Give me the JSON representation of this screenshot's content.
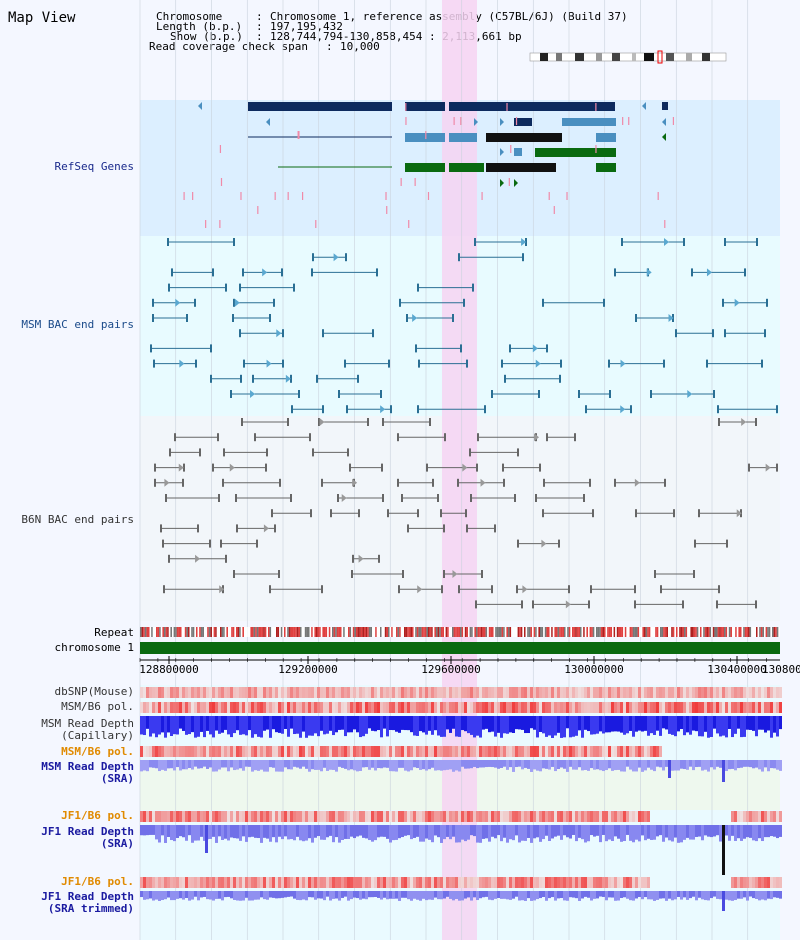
{
  "view_title": "Map View",
  "info": {
    "chromosome_label": "Chromosome",
    "chromosome_value": "Chromosome 1, reference assembly (C57BL/6J) (Build 37)",
    "length_label": "Length (b.p.)",
    "length_value": "197,195,432",
    "show_label": "Show (b.p.)",
    "show_value": "128,744,794-130,858,454 : 2,113,661 bp",
    "coverage_label": "Read coverage check span",
    "coverage_value": "10,000"
  },
  "tracks": {
    "refseq": "RefSeq Genes",
    "msm_bac": "MSM BAC end pairs",
    "b6n_bac": "B6N BAC end pairs",
    "repeat": "Repeat",
    "chromosome": "chromosome 1",
    "dbsnp": "dbSNP(Mouse)",
    "msm_b6_pol": "MSM/B6 pol.",
    "msm_read_cap_1": "MSM Read Depth",
    "msm_read_cap_2": "(Capillary)",
    "msm_b6_pol_sra": "MSM/B6 pol.",
    "msm_read_sra_1": "MSM Read Depth",
    "msm_read_sra_2": "(SRA)",
    "jf1_b6_pol": "JF1/B6 pol.",
    "jf1_read_sra_1": "JF1 Read Depth",
    "jf1_read_sra_2": "(SRA)",
    "jf1_b6_pol_2": "JF1/B6 pol.",
    "jf1_read_trim_1": "JF1 Read Depth",
    "jf1_read_trim_2": "(SRA trimmed)"
  },
  "axis_ticks": [
    "128800000",
    "129200000",
    "129600000",
    "130000000",
    "130400000",
    "130800"
  ],
  "colors": {
    "refseq_bg": "#dcefff",
    "msm_bg": "#e8fbff",
    "b6n_bg": "#f2f6fa",
    "highlight": "#f6d3f2",
    "navy": "#0d2a5e",
    "steel": "#4a8fc0",
    "green": "#0a6a10",
    "chrom_green": "#0a6a10"
  }
}
